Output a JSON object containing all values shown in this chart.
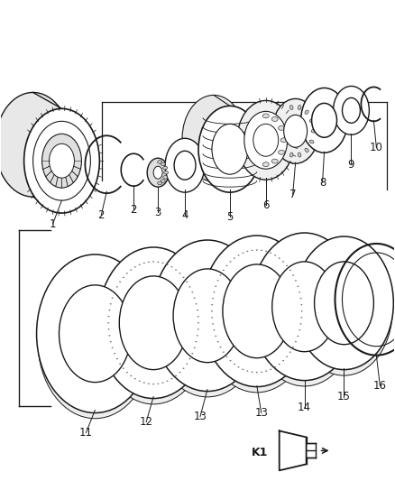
{
  "background_color": "#ffffff",
  "line_color": "#1a1a1a",
  "label_color": "#1a1a1a",
  "figure_width": 4.38,
  "figure_height": 5.33,
  "dpi": 100,
  "k1_label": "K1"
}
